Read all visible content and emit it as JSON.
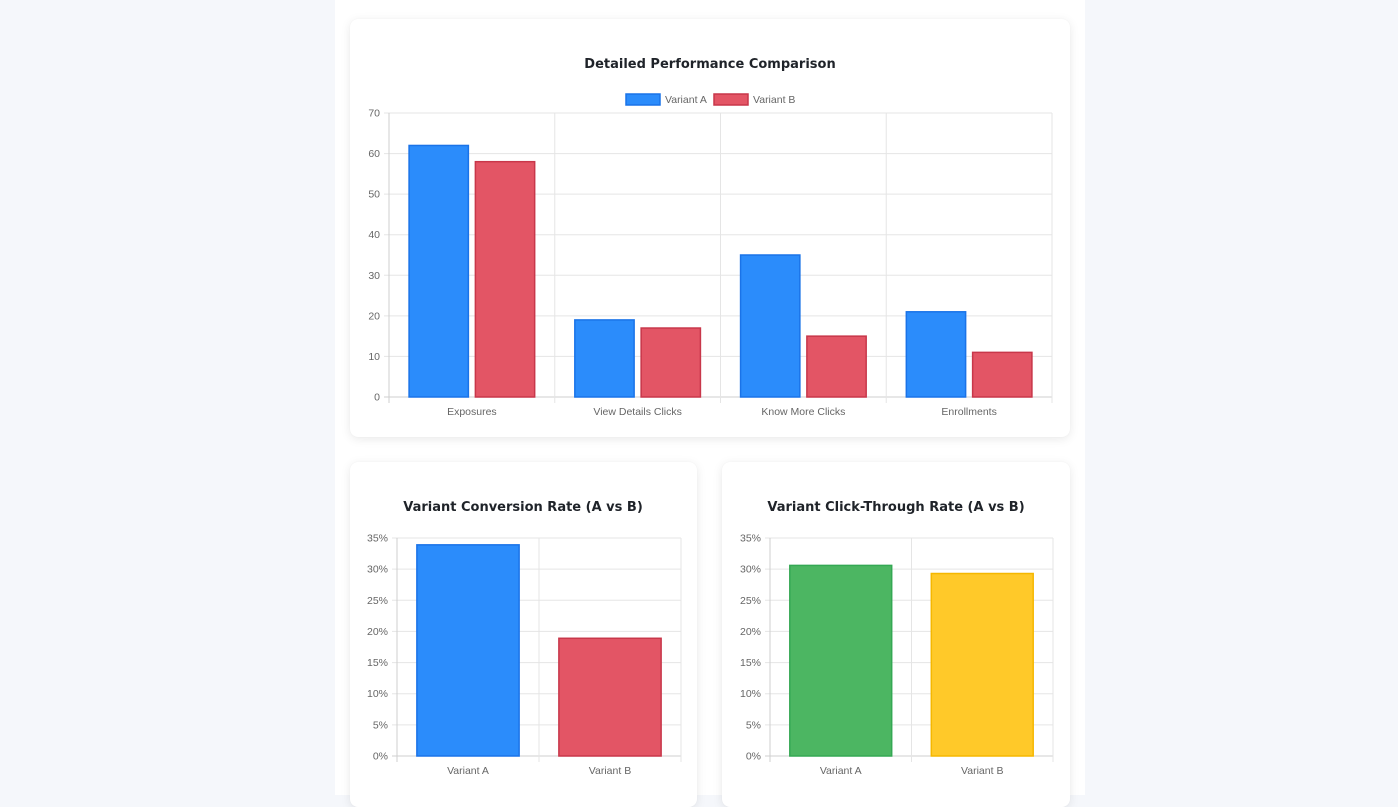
{
  "colors": {
    "variant_a_fill": "#2b8cfb",
    "variant_a_border": "#1a73e8",
    "variant_b_fill": "#e35565",
    "variant_b_border": "#c8374a",
    "green_fill": "#4cb662",
    "green_border": "#34a853",
    "yellow_fill": "#ffc929",
    "yellow_border": "#f5b700"
  },
  "chart_data": [
    {
      "type": "bar",
      "title": "Detailed Performance Comparison",
      "categories": [
        "Exposures",
        "View Details Clicks",
        "Know More Clicks",
        "Enrollments"
      ],
      "series": [
        {
          "name": "Variant A",
          "values": [
            62,
            19,
            35,
            21
          ]
        },
        {
          "name": "Variant B",
          "values": [
            58,
            17,
            15,
            11
          ]
        }
      ],
      "ylim": [
        0,
        70
      ],
      "yticks": [
        "0",
        "10",
        "20",
        "30",
        "40",
        "50",
        "60",
        "70"
      ],
      "grid": true,
      "legend": "top-center"
    },
    {
      "type": "bar",
      "title": "Variant Conversion Rate (A vs B)",
      "categories": [
        "Variant A",
        "Variant B"
      ],
      "values": [
        33.9,
        18.9
      ],
      "unit": "%",
      "ylim": [
        0,
        35
      ],
      "yticks": [
        "0%",
        "5%",
        "10%",
        "15%",
        "20%",
        "25%",
        "30%",
        "35%"
      ],
      "grid": true
    },
    {
      "type": "bar",
      "title": "Variant Click-Through Rate (A vs B)",
      "categories": [
        "Variant A",
        "Variant B"
      ],
      "values": [
        30.6,
        29.3
      ],
      "unit": "%",
      "ylim": [
        0,
        35
      ],
      "yticks": [
        "0%",
        "5%",
        "10%",
        "15%",
        "20%",
        "25%",
        "30%",
        "35%"
      ],
      "grid": true
    }
  ]
}
